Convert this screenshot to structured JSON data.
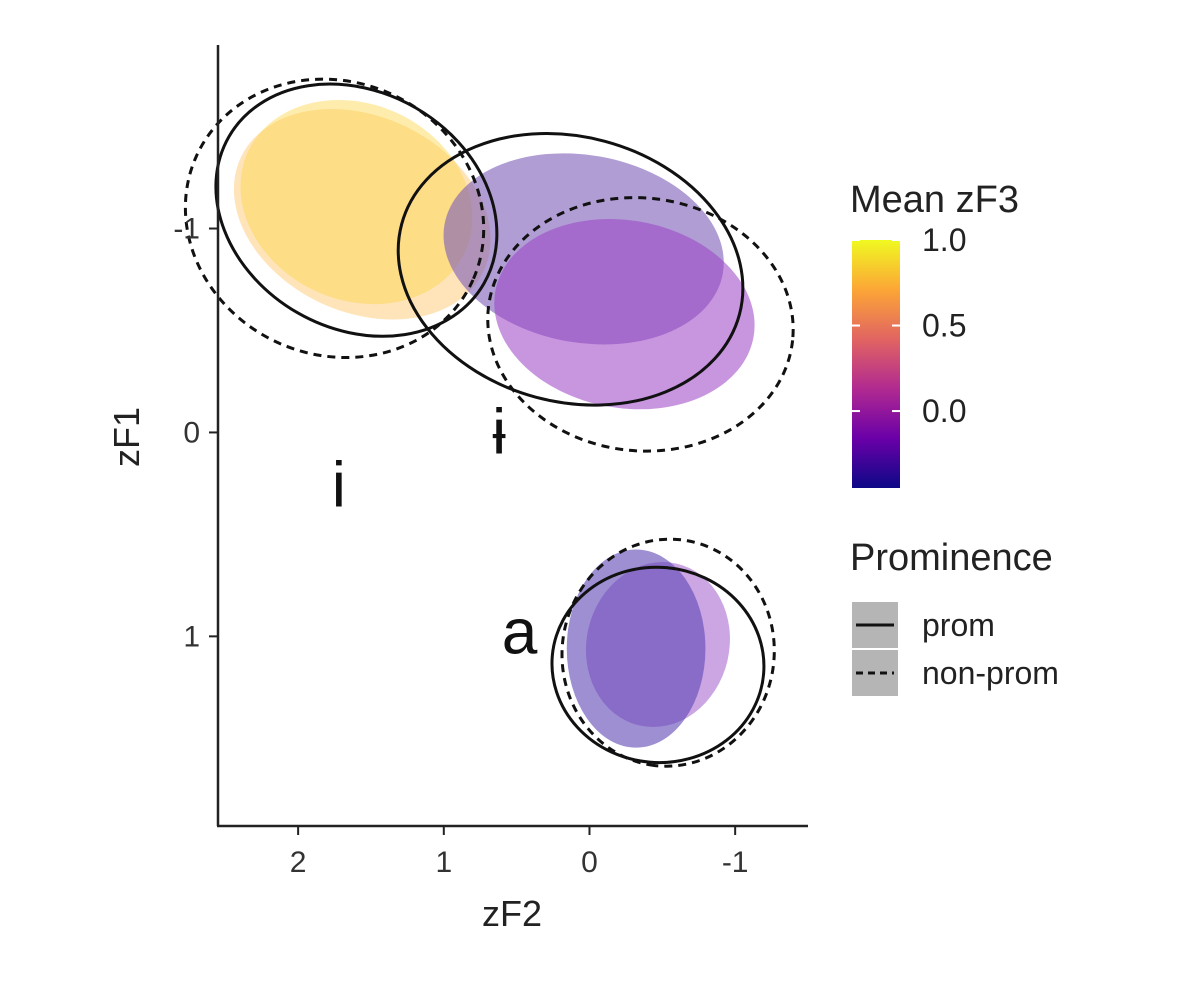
{
  "chart_data": {
    "type": "scatter",
    "xlabel": "zF2",
    "ylabel": "zF1",
    "x_reversed": true,
    "y_reversed": true,
    "xlim": [
      2.55,
      -1.5
    ],
    "ylim": [
      -1.9,
      1.93
    ],
    "x_ticks": [
      2,
      1,
      0,
      -1
    ],
    "x_tick_labels": [
      "2",
      "1",
      "0",
      "-1"
    ],
    "y_ticks": [
      -1,
      0,
      1
    ],
    "y_tick_labels": [
      "-1",
      "0",
      "1"
    ],
    "grid": false,
    "color_legend": {
      "title": "Mean zF3",
      "scale": "plasma",
      "stops": [
        "#0d0887",
        "#6a00a8",
        "#b12a90",
        "#e16462",
        "#fca636",
        "#f0f921"
      ],
      "range": [
        -0.45,
        1.0
      ],
      "ticks": [
        1.0,
        0.5,
        0.0
      ],
      "tick_labels": [
        "1.0",
        "0.5",
        "0.0"
      ]
    },
    "linetype_legend": {
      "title": "Prominence",
      "entries": [
        {
          "label": "prom",
          "linetype": "solid"
        },
        {
          "label": "non-prom",
          "linetype": "dashed"
        }
      ]
    },
    "vowels": [
      {
        "label": "i",
        "label_pos": {
          "x": 1.72,
          "y": 0.28
        }
      },
      {
        "label": "ɨ",
        "label_pos": {
          "x": 0.62,
          "y": 0.02
        }
      },
      {
        "label": "a",
        "label_pos": {
          "x": 0.48,
          "y": 1.0
        }
      }
    ],
    "filled_ellipses": [
      {
        "vowel": "i",
        "cx": 1.56,
        "cy": -1.07,
        "rx": 0.92,
        "ry": 0.48,
        "angle": 25,
        "color": "#fdb845",
        "opacity": 0.38
      },
      {
        "vowel": "i",
        "cx": 1.6,
        "cy": -1.13,
        "rx": 0.82,
        "ry": 0.48,
        "angle": 25,
        "color": "#fdd54a",
        "opacity": 0.45
      },
      {
        "vowel": "ɨ",
        "cx": 0.04,
        "cy": -0.9,
        "rx": 0.97,
        "ry": 0.46,
        "angle": 10,
        "color": "#7b5cb8",
        "opacity": 0.6
      },
      {
        "vowel": "ɨ",
        "cx": -0.24,
        "cy": -0.58,
        "rx": 0.9,
        "ry": 0.46,
        "angle": 10,
        "color": "#9a3fc4",
        "opacity": 0.55
      },
      {
        "vowel": "a",
        "cx": -0.47,
        "cy": 1.04,
        "rx": 0.57,
        "ry": 0.35,
        "angle": 103,
        "color": "#a86ad0",
        "opacity": 0.6
      },
      {
        "vowel": "a",
        "cx": -0.32,
        "cy": 1.06,
        "rx": 0.68,
        "ry": 0.34,
        "angle": 90,
        "color": "#5d45b6",
        "opacity": 0.6
      }
    ],
    "outline_ellipses": [
      {
        "vowel": "i",
        "prominence": "prom",
        "cx": 1.6,
        "cy": -1.09,
        "rx": 1.01,
        "ry": 0.58,
        "angle": 30,
        "linetype": "solid"
      },
      {
        "vowel": "i",
        "prominence": "non-prom",
        "cx": 1.75,
        "cy": -1.05,
        "rx": 1.04,
        "ry": 0.67,
        "angle": 24,
        "linetype": "dashed"
      },
      {
        "vowel": "ɨ",
        "prominence": "prom",
        "cx": 0.13,
        "cy": -0.8,
        "rx": 1.2,
        "ry": 0.65,
        "angle": 15,
        "linetype": "solid"
      },
      {
        "vowel": "ɨ",
        "prominence": "non-prom",
        "cx": -0.35,
        "cy": -0.53,
        "rx": 1.05,
        "ry": 0.62,
        "angle": 6,
        "linetype": "dashed"
      },
      {
        "vowel": "a",
        "prominence": "prom",
        "cx": -0.47,
        "cy": 1.14,
        "rx": 0.67,
        "ry": 0.52,
        "angle": 95,
        "linetype": "solid"
      },
      {
        "vowel": "a",
        "prominence": "non-prom",
        "cx": -0.54,
        "cy": 1.08,
        "rx": 0.78,
        "ry": 0.52,
        "angle": 97,
        "linetype": "dashed"
      }
    ]
  }
}
